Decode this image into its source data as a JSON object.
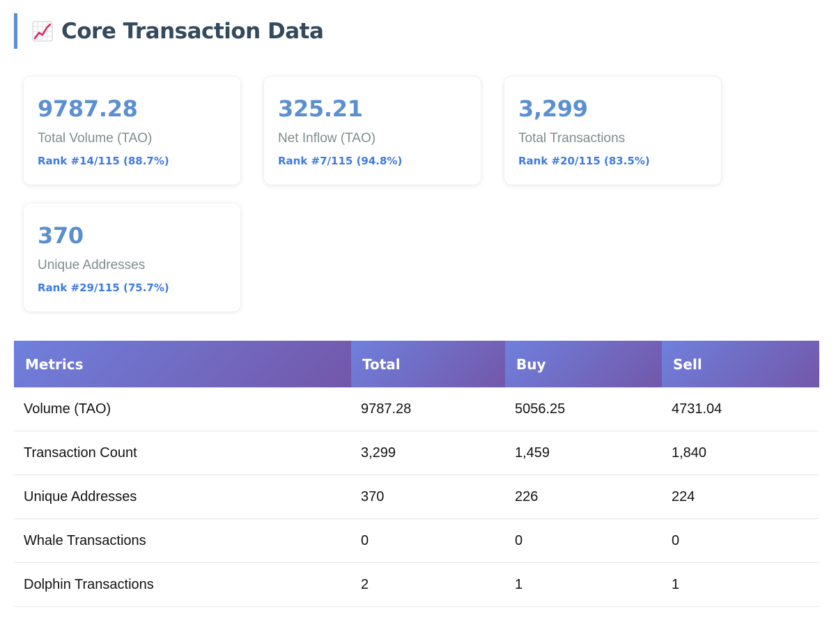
{
  "section": {
    "title": "Core Transaction Data",
    "icon": "chart-increasing-icon"
  },
  "cards": [
    {
      "value": "9787.28",
      "label": "Total Volume (TAO)",
      "rank": "Rank #14/115 (88.7%)"
    },
    {
      "value": "325.21",
      "label": "Net Inflow (TAO)",
      "rank": "Rank #7/115 (94.8%)"
    },
    {
      "value": "3,299",
      "label": "Total Transactions",
      "rank": "Rank #20/115 (83.5%)"
    },
    {
      "value": "370",
      "label": "Unique Addresses",
      "rank": "Rank #29/115 (75.7%)"
    }
  ],
  "table": {
    "headers": [
      "Metrics",
      "Total",
      "Buy",
      "Sell"
    ],
    "rows": [
      [
        "Volume (TAO)",
        "9787.28",
        "5056.25",
        "4731.04"
      ],
      [
        "Transaction Count",
        "3,299",
        "1,459",
        "1,840"
      ],
      [
        "Unique Addresses",
        "370",
        "226",
        "224"
      ],
      [
        "Whale Transactions",
        "0",
        "0",
        "0"
      ],
      [
        "Dolphin Transactions",
        "2",
        "1",
        "1"
      ]
    ]
  },
  "colors": {
    "accent": "#5b8fd0",
    "rank": "#3d7be0",
    "header_gradient_start": "#6f80dd",
    "header_gradient_end": "#7357a9",
    "title": "#34495e"
  }
}
